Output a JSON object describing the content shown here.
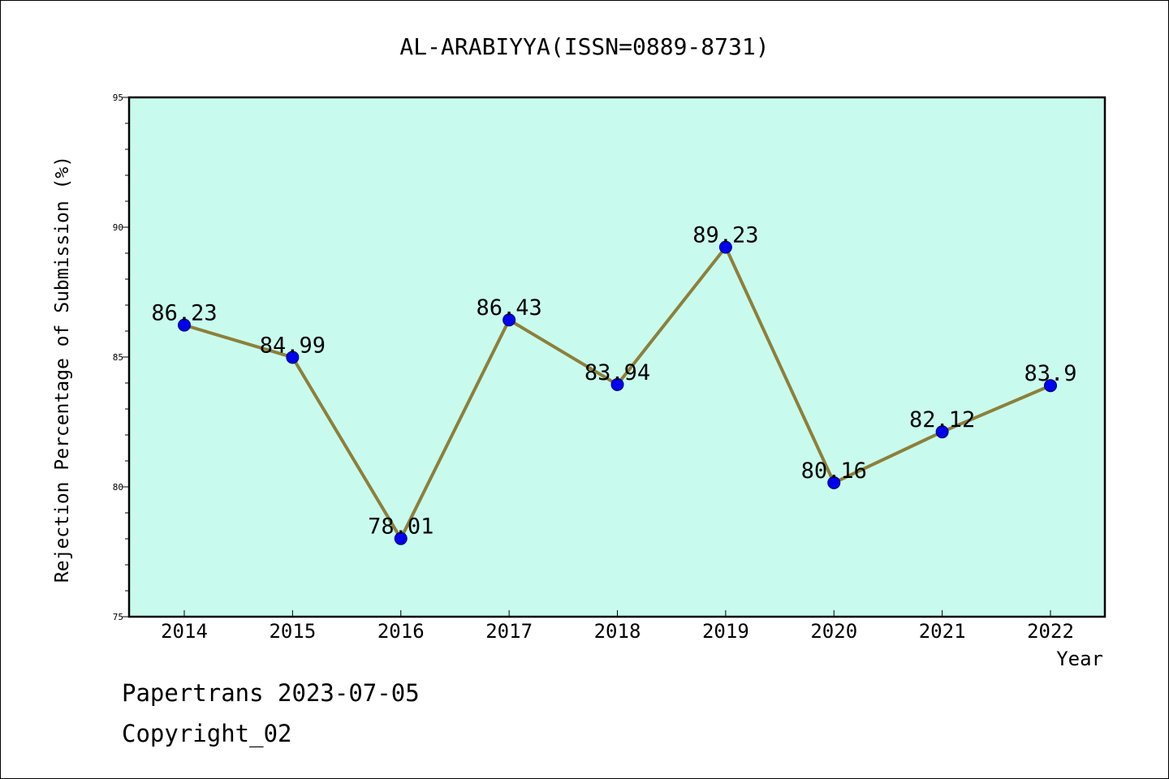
{
  "chart_data": {
    "type": "line",
    "title": "AL-ARABIYYA(ISSN=0889-8731)",
    "xlabel": "Year",
    "ylabel": "Rejection Percentage of Submission (%)",
    "categories": [
      "2014",
      "2015",
      "2016",
      "2017",
      "2018",
      "2019",
      "2020",
      "2021",
      "2022"
    ],
    "series": [
      {
        "values": [
          86.23,
          84.99,
          78.01,
          86.43,
          83.94,
          89.23,
          80.16,
          82.12,
          83.9
        ]
      }
    ],
    "data_labels": [
      "86.23",
      "84.99",
      "78.01",
      "86.43",
      "83.94",
      "89.23",
      "80.16",
      "82.12",
      "83.9"
    ],
    "ylim": [
      75,
      95
    ],
    "yticks": [
      "75",
      "80",
      "85",
      "90",
      "95"
    ],
    "y_minor_step": 1,
    "grid": false,
    "colors": {
      "plot_background": "#c8fbee",
      "line": "#8e7f3a",
      "marker": "#0000ee"
    }
  },
  "footer": {
    "line1": "Papertrans 2023-07-05",
    "line2": "Copyright_02"
  }
}
